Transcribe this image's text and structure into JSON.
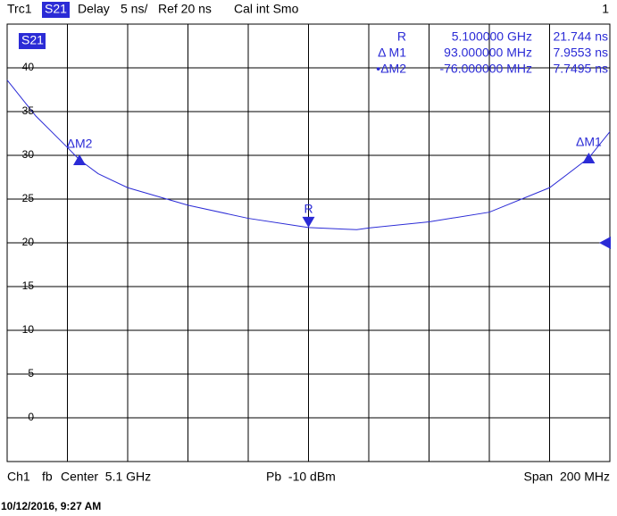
{
  "header": {
    "trace": "Trc1",
    "parameter": "S21",
    "format": "Delay",
    "scale": "5 ns/",
    "reference": "Ref 20 ns",
    "status": "Cal int Smo",
    "window": "1"
  },
  "chart_data": {
    "type": "line",
    "trace_label": "S21",
    "series": [
      {
        "name": "S21",
        "color": "#2b2bd6",
        "x": [
          5.0,
          5.0095,
          5.02,
          5.024,
          5.0302,
          5.04,
          5.06,
          5.08,
          5.1,
          5.116,
          5.12,
          5.14,
          5.16,
          5.18,
          5.193,
          5.2
        ],
        "values": [
          38.6,
          34.5,
          30.9,
          29.49,
          27.9,
          26.3,
          24.3,
          22.8,
          21.744,
          21.5,
          21.7,
          22.4,
          23.5,
          26.3,
          29.7,
          32.7
        ]
      }
    ],
    "xlim": [
      5.0,
      5.2
    ],
    "ylim": [
      -5,
      45
    ],
    "yticks": [
      0,
      5,
      10,
      15,
      20,
      25,
      30,
      35,
      40
    ],
    "grid": true,
    "ref_value": 20,
    "markers": [
      {
        "label": "R",
        "x": 5.1,
        "value": 21.744,
        "pointer": "down"
      },
      {
        "label": "ΔM1",
        "x": 5.193,
        "value": 29.7,
        "pointer": "up"
      },
      {
        "label": "ΔM2",
        "x": 5.024,
        "value": 29.49,
        "pointer": "up"
      }
    ],
    "marker_table": [
      [
        "R",
        "5.100000 GHz",
        "21.744 ns"
      ],
      [
        "Δ M1",
        "93.000000 MHz",
        "7.9553 ns"
      ],
      [
        "•ΔM2",
        "-76.000000 MHz",
        "7.7495 ns"
      ]
    ]
  },
  "footer": {
    "channel": "Ch1",
    "mode": "fb",
    "center": "Center  5.1 GHz",
    "power": "Pb  -10 dBm",
    "span": "Span  200 MHz",
    "timestamp": "10/12/2016, 9:27 AM"
  }
}
